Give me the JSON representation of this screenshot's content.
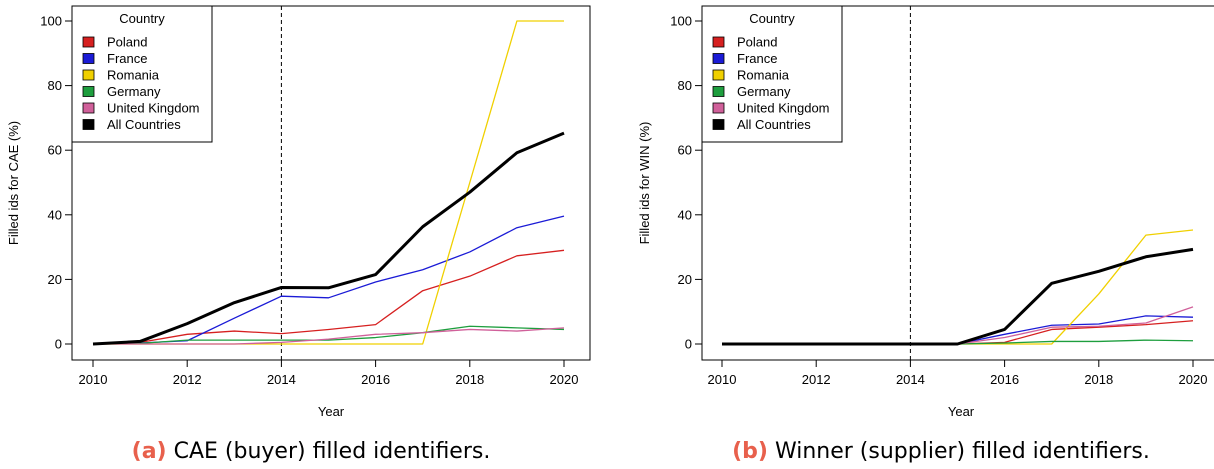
{
  "chart_data": [
    {
      "type": "line",
      "caption": {
        "label": "(a)",
        "text": " CAE (buyer) filled identifiers."
      },
      "xlabel": "Year",
      "ylabel": "Filled ids for CAE (%)",
      "xlim": [
        2010,
        2020
      ],
      "ylim": [
        0,
        100
      ],
      "xticks": [
        2010,
        2012,
        2014,
        2016,
        2018,
        2020
      ],
      "yticks": [
        0,
        20,
        40,
        60,
        80,
        100
      ],
      "vline": 2014,
      "legend": {
        "title": "Country",
        "position": "top-left"
      },
      "x": [
        2010,
        2011,
        2012,
        2013,
        2014,
        2015,
        2016,
        2017,
        2018,
        2019,
        2020
      ],
      "series": [
        {
          "name": "Poland",
          "color": "#d62020",
          "width": 1.3,
          "values": [
            0,
            0.5,
            3,
            4,
            3.2,
            4.5,
            6,
            16.5,
            21,
            27.3,
            29
          ]
        },
        {
          "name": "France",
          "color": "#1b1bd6",
          "width": 1.3,
          "values": [
            0,
            0.3,
            1,
            8,
            14.8,
            14.3,
            19.2,
            23,
            28.5,
            36,
            39.6
          ]
        },
        {
          "name": "Romania",
          "color": "#f0d000",
          "width": 1.3,
          "values": [
            0,
            0,
            0,
            0,
            0,
            0,
            0,
            0,
            50,
            100,
            100
          ]
        },
        {
          "name": "Germany",
          "color": "#1e9e3e",
          "width": 1.3,
          "values": [
            0,
            0.2,
            1.2,
            1.2,
            1.2,
            1.2,
            2,
            3.5,
            5.5,
            5,
            4.5
          ]
        },
        {
          "name": "United Kingdom",
          "color": "#d0609a",
          "width": 1.3,
          "values": [
            0,
            0,
            0,
            0,
            0.5,
            1.5,
            3,
            3.5,
            4.5,
            4,
            5
          ]
        },
        {
          "name": "All Countries",
          "color": "#000000",
          "width": 3,
          "values": [
            0,
            0.8,
            6.3,
            12.8,
            17.5,
            17.4,
            21.5,
            36.3,
            47,
            59.2,
            65.3
          ]
        }
      ]
    },
    {
      "type": "line",
      "caption": {
        "label": "(b)",
        "text": " Winner (supplier) filled identifiers."
      },
      "xlabel": "Year",
      "ylabel": "Filled ids for WIN (%)",
      "xlim": [
        2010,
        2020
      ],
      "ylim": [
        0,
        100
      ],
      "xticks": [
        2010,
        2012,
        2014,
        2016,
        2018,
        2020
      ],
      "yticks": [
        0,
        20,
        40,
        60,
        80,
        100
      ],
      "vline": 2014,
      "legend": {
        "title": "Country",
        "position": "top-left"
      },
      "x": [
        2010,
        2011,
        2012,
        2013,
        2014,
        2015,
        2016,
        2017,
        2018,
        2019,
        2020
      ],
      "series": [
        {
          "name": "Poland",
          "color": "#d62020",
          "width": 1.3,
          "values": [
            0,
            0,
            0,
            0,
            0,
            0,
            0.5,
            4.5,
            5.2,
            6,
            7.2
          ]
        },
        {
          "name": "France",
          "color": "#1b1bd6",
          "width": 1.3,
          "values": [
            0,
            0,
            0,
            0,
            0,
            0,
            3,
            5.8,
            6.2,
            8.7,
            8.3
          ]
        },
        {
          "name": "Romania",
          "color": "#f0d000",
          "width": 1.3,
          "values": [
            0,
            0,
            0,
            0,
            0,
            0,
            0,
            0,
            15.5,
            33.7,
            35.3
          ]
        },
        {
          "name": "Germany",
          "color": "#1e9e3e",
          "width": 1.3,
          "values": [
            0,
            0,
            0,
            0,
            0,
            0,
            0.3,
            0.8,
            0.8,
            1.2,
            1
          ]
        },
        {
          "name": "United Kingdom",
          "color": "#d0609a",
          "width": 1.3,
          "values": [
            0,
            0,
            0,
            0,
            0,
            0,
            2,
            5.2,
            5.5,
            6.5,
            11.5
          ]
        },
        {
          "name": "All Countries",
          "color": "#000000",
          "width": 3,
          "values": [
            0,
            0,
            0,
            0,
            0,
            0,
            4.5,
            18.8,
            22.5,
            27,
            29.3
          ]
        }
      ]
    }
  ]
}
